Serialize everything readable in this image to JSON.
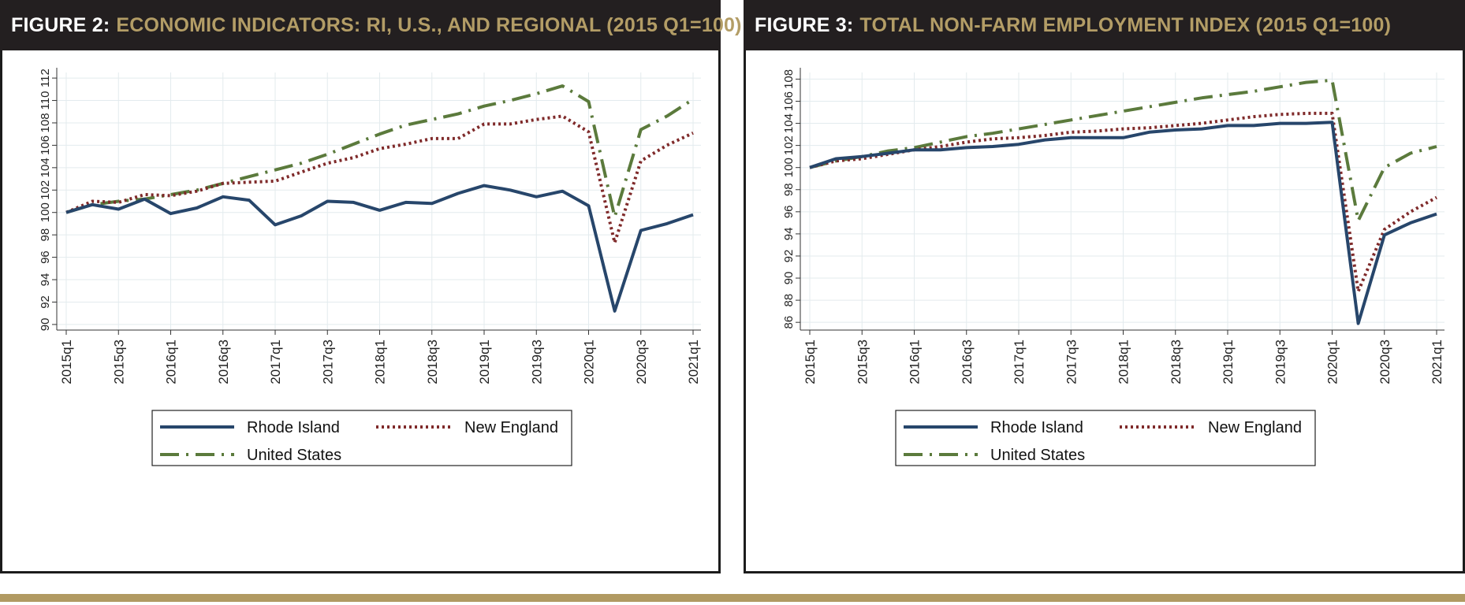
{
  "figures": [
    {
      "label": "FIGURE 2:",
      "title": "ECONOMIC INDICATORS: RI, U.S., AND REGIONAL (2015 Q1=100)"
    },
    {
      "label": "FIGURE 3:",
      "title": "TOTAL NON-FARM EMPLOYMENT INDEX (2015 Q1=100)"
    }
  ],
  "chart_data": [
    {
      "type": "line",
      "title": "ECONOMIC INDICATORS: RI, U.S., AND REGIONAL (2015 Q1=100)",
      "xlabel": "",
      "ylabel": "",
      "ylim": [
        89.5,
        112.5
      ],
      "yticks": [
        90,
        92,
        94,
        96,
        98,
        100,
        102,
        104,
        106,
        108,
        110,
        112
      ],
      "ytick_labels": [
        "90",
        "92",
        "94",
        "96",
        "98",
        "100",
        "102",
        "104",
        "106",
        "108",
        "110",
        "112"
      ],
      "x": [
        "2015q1",
        "2015q2",
        "2015q3",
        "2015q4",
        "2016q1",
        "2016q2",
        "2016q3",
        "2016q4",
        "2017q1",
        "2017q2",
        "2017q3",
        "2017q4",
        "2018q1",
        "2018q2",
        "2018q3",
        "2018q4",
        "2019q1",
        "2019q2",
        "2019q3",
        "2019q4",
        "2020q1",
        "2020q2",
        "2020q3",
        "2020q4",
        "2021q1"
      ],
      "xtick_labels": [
        "2015q1",
        "2015q3",
        "2016q1",
        "2016q3",
        "2017q1",
        "2017q3",
        "2018q1",
        "2018q3",
        "2019q1",
        "2019q3",
        "2020q1",
        "2020q3",
        "2021q1"
      ],
      "grid": true,
      "legend_position": "bottom-center",
      "series": [
        {
          "name": "Rhode Island",
          "color": "#27466b",
          "style": "solid",
          "values": [
            100.0,
            100.7,
            100.3,
            101.2,
            99.9,
            100.4,
            101.4,
            101.1,
            98.9,
            99.7,
            101.0,
            100.9,
            100.2,
            100.9,
            100.8,
            101.7,
            102.4,
            102.0,
            101.4,
            101.9,
            100.6,
            91.2,
            98.4,
            99.0,
            99.8
          ]
        },
        {
          "name": "New England",
          "color": "#7f2a2a",
          "style": "dotted",
          "values": [
            100.0,
            101.0,
            100.9,
            101.6,
            101.5,
            101.9,
            102.6,
            102.7,
            102.8,
            103.6,
            104.4,
            104.9,
            105.7,
            106.1,
            106.6,
            106.6,
            107.9,
            107.9,
            108.3,
            108.6,
            107.2,
            97.3,
            104.6,
            106.0,
            107.1
          ]
        },
        {
          "name": "United States",
          "color": "#5b7a3c",
          "style": "dash-dot",
          "values": [
            100.0,
            100.7,
            101.0,
            101.2,
            101.6,
            102.0,
            102.6,
            103.2,
            103.8,
            104.4,
            105.2,
            106.1,
            107.0,
            107.8,
            108.3,
            108.8,
            109.5,
            110.0,
            110.6,
            111.3,
            109.9,
            99.6,
            107.4,
            108.6,
            110.1
          ]
        }
      ]
    },
    {
      "type": "line",
      "title": "TOTAL NON-FARM EMPLOYMENT INDEX (2015 Q1=100)",
      "xlabel": "",
      "ylabel": "",
      "ylim": [
        85.3,
        108.6
      ],
      "yticks": [
        86,
        88,
        90,
        92,
        94,
        96,
        98,
        100,
        102,
        104,
        106,
        108
      ],
      "ytick_labels": [
        "86",
        "88",
        "90",
        "92",
        "94",
        "96",
        "98",
        "100",
        "102",
        "104",
        "106",
        "108"
      ],
      "x": [
        "2015q1",
        "2015q2",
        "2015q3",
        "2015q4",
        "2016q1",
        "2016q2",
        "2016q3",
        "2016q4",
        "2017q1",
        "2017q2",
        "2017q3",
        "2017q4",
        "2018q1",
        "2018q2",
        "2018q3",
        "2018q4",
        "2019q1",
        "2019q2",
        "2019q3",
        "2019q4",
        "2020q1",
        "2020q2",
        "2020q3",
        "2020q4",
        "2021q1"
      ],
      "xtick_labels": [
        "2015q1",
        "2015q3",
        "2016q1",
        "2016q3",
        "2017q1",
        "2017q3",
        "2018q1",
        "2018q3",
        "2019q1",
        "2019q3",
        "2020q1",
        "2020q3",
        "2021q1"
      ],
      "grid": true,
      "legend_position": "bottom-center",
      "series": [
        {
          "name": "Rhode Island",
          "color": "#27466b",
          "style": "solid",
          "values": [
            100.0,
            100.8,
            101.0,
            101.3,
            101.6,
            101.6,
            101.8,
            101.9,
            102.1,
            102.5,
            102.7,
            102.7,
            102.7,
            103.2,
            103.4,
            103.5,
            103.8,
            103.8,
            104.0,
            104.0,
            104.1,
            85.9,
            93.9,
            95.0,
            95.8
          ]
        },
        {
          "name": "New England",
          "color": "#7f2a2a",
          "style": "dotted",
          "values": [
            100.0,
            100.6,
            100.8,
            101.2,
            101.6,
            101.9,
            102.3,
            102.6,
            102.7,
            102.9,
            103.2,
            103.3,
            103.5,
            103.6,
            103.8,
            104.0,
            104.3,
            104.6,
            104.8,
            104.9,
            104.9,
            88.8,
            94.4,
            96.0,
            97.3
          ]
        },
        {
          "name": "United States",
          "color": "#5b7a3c",
          "style": "dash-dot",
          "values": [
            100.0,
            100.6,
            101.0,
            101.5,
            101.8,
            102.3,
            102.8,
            103.1,
            103.5,
            103.9,
            104.3,
            104.7,
            105.1,
            105.5,
            105.9,
            106.3,
            106.6,
            106.9,
            107.3,
            107.7,
            107.9,
            95.2,
            100.0,
            101.3,
            101.9
          ]
        }
      ]
    }
  ]
}
